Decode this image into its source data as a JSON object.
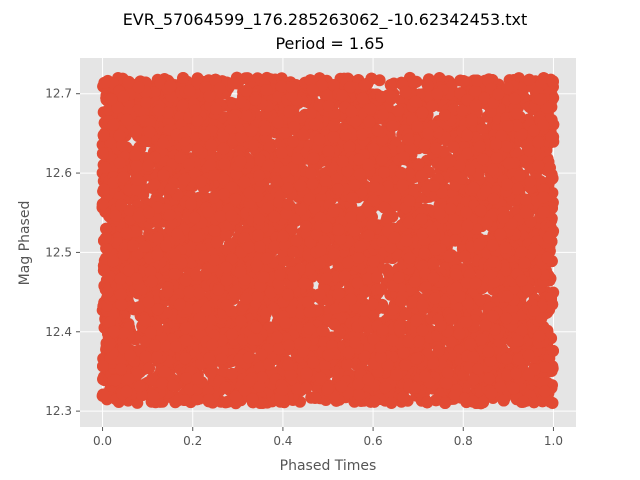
{
  "chart_data": {
    "type": "scatter",
    "title": "EVR_57064599_176.285263062_-10.62342453.txt",
    "subtitle": "Period = 1.65",
    "xlabel": "Phased Times",
    "ylabel": "Mag Phased",
    "xlim": [
      -0.05,
      1.05
    ],
    "ylim": [
      12.28,
      12.745
    ],
    "x_ticks": [
      "0.0",
      "0.2",
      "0.4",
      "0.6",
      "0.8",
      "1.0"
    ],
    "y_ticks": [
      "12.3",
      "12.4",
      "12.5",
      "12.6",
      "12.7"
    ],
    "series": [
      {
        "marker_color": "#E24A33",
        "x_range": [
          0.0,
          1.0
        ],
        "y_range": [
          12.31,
          12.72
        ],
        "approx_point_count": 9000,
        "distribution": "uniform cloud across full phase range"
      }
    ],
    "grid": true,
    "background_color": "#E5E5E5",
    "grid_color": "#FFFFFF"
  }
}
